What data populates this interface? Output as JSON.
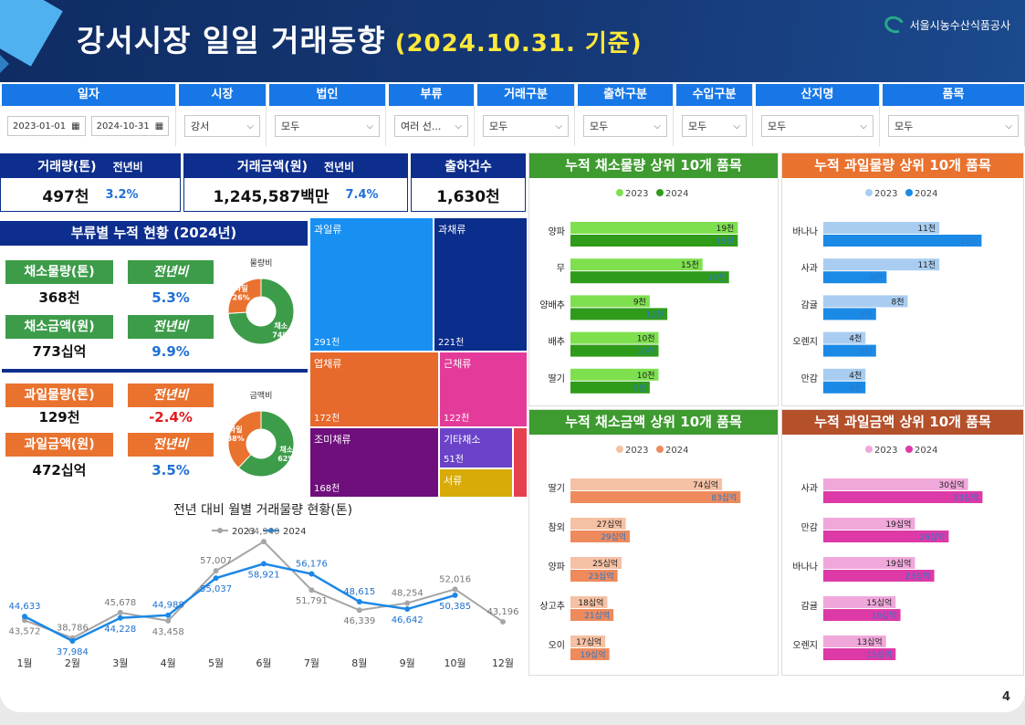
{
  "header": {
    "title": "강서시장 일일 거래동향",
    "subtitle": "(2024.10.31. 기준)",
    "org": "서울시농수산식품공사"
  },
  "filters": [
    {
      "label": "일자",
      "values": [
        "2023-01-01",
        "2024-10-31"
      ]
    },
    {
      "label": "시장",
      "value": "강서"
    },
    {
      "label": "법인",
      "value": "모두"
    },
    {
      "label": "부류",
      "value": "여러 선..."
    },
    {
      "label": "거래구분",
      "value": "모두"
    },
    {
      "label": "출하구분",
      "value": "모두"
    },
    {
      "label": "수입구분",
      "value": "모두"
    },
    {
      "label": "산지명",
      "value": "모두"
    },
    {
      "label": "품목",
      "value": "모두"
    }
  ],
  "kpi": {
    "volume": {
      "label": "거래량(톤)",
      "cmp": "전년비",
      "value": "497천",
      "pct": "3.2%"
    },
    "amount": {
      "label": "거래금액(원)",
      "cmp": "전년비",
      "value": "1,245,587백만",
      "pct": "7.4%"
    },
    "shipments": {
      "label": "출하건수",
      "value": "1,630천"
    }
  },
  "category": {
    "title": "부류별 누적 현황 (2024년)",
    "veg_vol_label": "채소물량(톤)",
    "veg_vol": "368천",
    "veg_vol_cmp": "전년비",
    "veg_vol_pct": "5.3%",
    "veg_amt_label": "채소금액(원)",
    "veg_amt": "773십억",
    "veg_amt_cmp": "전년비",
    "veg_amt_pct": "9.9%",
    "fruit_vol_label": "과일물량(톤)",
    "fruit_vol": "129천",
    "fruit_vol_cmp": "전년비",
    "fruit_vol_pct": "-2.4%",
    "fruit_amt_label": "과일금액(원)",
    "fruit_amt": "472십억",
    "fruit_amt_cmp": "전년비",
    "fruit_amt_pct": "3.5%",
    "donut1": {
      "title": "물량비",
      "slices": [
        {
          "name": "채소",
          "pct": 74,
          "label": "74%",
          "color": "#3d9c4a"
        },
        {
          "name": "과일",
          "pct": 26,
          "label": "26%",
          "color": "#e9722e"
        }
      ]
    },
    "donut2": {
      "title": "금액비",
      "slices": [
        {
          "name": "채소",
          "pct": 62,
          "label": "62%",
          "color": "#3d9c4a"
        },
        {
          "name": "과일",
          "pct": 38,
          "label": "38%",
          "color": "#e9722e"
        }
      ]
    }
  },
  "treemap": [
    {
      "name": "과일류",
      "value": "291천",
      "color": "#1890f2"
    },
    {
      "name": "과채류",
      "value": "221천",
      "color": "#0b2d8c"
    },
    {
      "name": "엽채류",
      "value": "172천",
      "color": "#e7692c"
    },
    {
      "name": "근채류",
      "value": "122천",
      "color": "#e43b9a"
    },
    {
      "name": "조미채류",
      "value": "168천",
      "color": "#6f0f7c"
    },
    {
      "name": "기타채소",
      "value": "51천",
      "color": "#6a43c8"
    },
    {
      "name": "서류",
      "value": "",
      "color": "#d8ab08"
    }
  ],
  "colors": {
    "c2023": "#a6a6a6",
    "c2024": "#1d87e6",
    "veg23": "#7ee04f",
    "veg24": "#2f9b1a",
    "fr23": "#a9cdf1",
    "fr24": "#1b8ae6",
    "va23": "#f5c1a4",
    "va24": "#ee8a5c",
    "fa23": "#f0a8db",
    "fa24": "#dd3aa7"
  },
  "chart_data": [
    {
      "type": "line",
      "title": "전년 대비 월별 거래물량 현황(톤)",
      "categories": [
        "1월",
        "2월",
        "3월",
        "4월",
        "5월",
        "6월",
        "7월",
        "8월",
        "9월",
        "10월",
        "12월"
      ],
      "series": [
        {
          "name": "2023",
          "values": [
            43572,
            38786,
            45678,
            43458,
            57007,
            64940,
            51791,
            46339,
            48254,
            52016,
            43196
          ]
        },
        {
          "name": "2024",
          "values": [
            44633,
            37984,
            44228,
            44988,
            55037,
            58921,
            56176,
            48615,
            46642,
            50385,
            null
          ]
        }
      ]
    },
    {
      "type": "bar",
      "title": "누적 채소물량 상위 10개 품목",
      "categories": [
        "양파",
        "무",
        "양배추",
        "배추",
        "딸기"
      ],
      "series": [
        {
          "name": "2023",
          "values": [
            19,
            15,
            9,
            10,
            10
          ],
          "labels": [
            "19천",
            "15천",
            "9천",
            "10천",
            "10천"
          ]
        },
        {
          "name": "2024",
          "values": [
            19,
            18,
            11,
            10,
            9
          ],
          "labels": [
            "19천",
            "18천",
            "11천",
            "10천",
            "9천"
          ]
        }
      ]
    },
    {
      "type": "bar",
      "title": "누적 과일물량 상위 10개 품목",
      "categories": [
        "바나나",
        "사과",
        "감귤",
        "오렌지",
        "만감"
      ],
      "series": [
        {
          "name": "2023",
          "values": [
            11,
            11,
            8,
            4,
            4
          ],
          "labels": [
            "11천",
            "11천",
            "8천",
            "4천",
            "4천"
          ]
        },
        {
          "name": "2024",
          "values": [
            15,
            6,
            5,
            5,
            4
          ],
          "labels": [
            "15천",
            "6천",
            "5천",
            "5천",
            "4천"
          ]
        }
      ]
    },
    {
      "type": "bar",
      "title": "누적 채소금액 상위 10개 품목",
      "categories": [
        "딸기",
        "참외",
        "양파",
        "상고추",
        "오이"
      ],
      "series": [
        {
          "name": "2023",
          "values": [
            74,
            27,
            25,
            18,
            17
          ],
          "labels": [
            "74십억",
            "27십억",
            "25십억",
            "18십억",
            "17십억"
          ]
        },
        {
          "name": "2024",
          "values": [
            83,
            29,
            23,
            21,
            19
          ],
          "labels": [
            "83십억",
            "29십억",
            "23십억",
            "21십억",
            "19십억"
          ]
        }
      ]
    },
    {
      "type": "bar",
      "title": "누적 과일금액 상위 10개 품목",
      "categories": [
        "사과",
        "만감",
        "바나나",
        "감귤",
        "오렌지"
      ],
      "series": [
        {
          "name": "2023",
          "values": [
            30,
            19,
            19,
            15,
            13
          ],
          "labels": [
            "30십억",
            "19십억",
            "19십억",
            "15십억",
            "13십억"
          ]
        },
        {
          "name": "2024",
          "values": [
            33,
            26,
            23,
            16,
            15
          ],
          "labels": [
            "33십억",
            "26십억",
            "23십억",
            "16십억",
            "15십억"
          ]
        }
      ]
    }
  ],
  "page_number": "4"
}
